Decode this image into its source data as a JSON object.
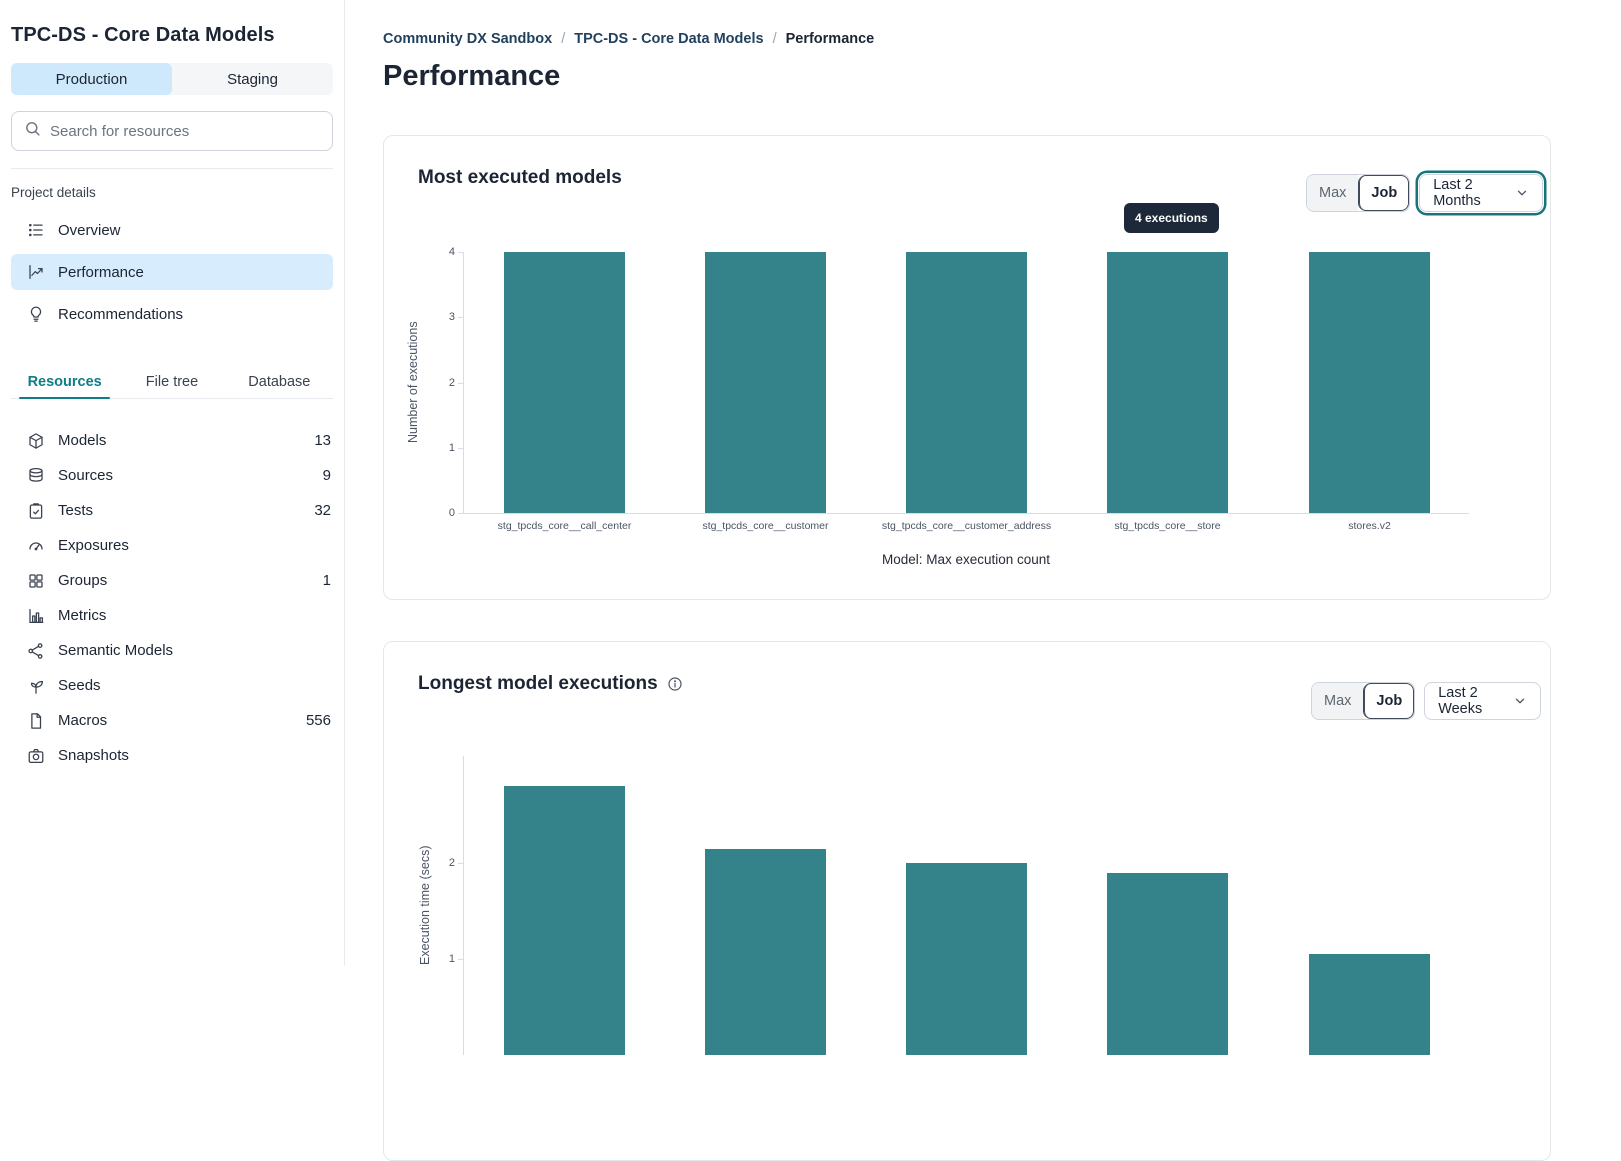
{
  "sidebar": {
    "title": "TPC-DS - Core Data Models",
    "env_tabs": [
      {
        "label": "Production",
        "active": true
      },
      {
        "label": "Staging",
        "active": false
      }
    ],
    "search_placeholder": "Search for resources",
    "section_label": "Project details",
    "nav_items": [
      {
        "label": "Overview",
        "icon": "overview-list-icon",
        "active": false
      },
      {
        "label": "Performance",
        "icon": "performance-chart-icon",
        "active": true
      },
      {
        "label": "Recommendations",
        "icon": "lightbulb-icon",
        "active": false
      }
    ],
    "tabs": [
      {
        "label": "Resources",
        "active": true
      },
      {
        "label": "File tree",
        "active": false
      },
      {
        "label": "Database",
        "active": false
      }
    ],
    "resources": [
      {
        "label": "Models",
        "count": "13",
        "icon": "cube-icon"
      },
      {
        "label": "Sources",
        "count": "9",
        "icon": "database-icon"
      },
      {
        "label": "Tests",
        "count": "32",
        "icon": "clipboard-check-icon"
      },
      {
        "label": "Exposures",
        "count": "",
        "icon": "gauge-icon"
      },
      {
        "label": "Groups",
        "count": "1",
        "icon": "grid-icon"
      },
      {
        "label": "Metrics",
        "count": "",
        "icon": "bar-chart-icon"
      },
      {
        "label": "Semantic Models",
        "count": "",
        "icon": "semantic-graph-icon"
      },
      {
        "label": "Seeds",
        "count": "",
        "icon": "seed-icon"
      },
      {
        "label": "Macros",
        "count": "556",
        "icon": "document-icon"
      },
      {
        "label": "Snapshots",
        "count": "",
        "icon": "camera-icon"
      }
    ]
  },
  "breadcrumb": {
    "items": [
      "Community DX Sandbox",
      "TPC-DS - Core Data Models",
      "Performance"
    ],
    "separator": "/"
  },
  "page_title": "Performance",
  "colors": {
    "bar_teal": "#35838A",
    "env_tab_active_blue": "#CDE9FB",
    "nav_active_blue": "#D7EDFD",
    "resources_tab_teal": "#0E7D86",
    "tooltip_bg": "#1D2939",
    "select_focus_teal": "#16747B"
  },
  "chart_data": [
    {
      "type": "bar",
      "title": "Most executed models",
      "categories": [
        "stg_tpcds_core__call_center",
        "stg_tpcds_core__customer",
        "stg_tpcds_core__customer_address",
        "stg_tpcds_core__store",
        "stores.v2"
      ],
      "values": [
        4,
        4,
        4,
        4,
        4
      ],
      "ylabel": "Number of executions",
      "xlabel": "Model: Max execution count",
      "yticks": [
        0,
        1,
        2,
        3,
        4
      ],
      "ylim": [
        0,
        4
      ],
      "grid": false,
      "legend": "none",
      "bar_color": "#35838A",
      "tooltip": {
        "label": "4 executions",
        "target_category": "stg_tpcds_core__store"
      },
      "controls": {
        "toggle": [
          "Max",
          "Job"
        ],
        "active_toggle": "Job",
        "range": "Last 2 Months",
        "range_focused": true
      }
    },
    {
      "type": "bar",
      "title": "Longest model executions",
      "has_info_icon": true,
      "values": [
        2.8,
        2.15,
        2.0,
        1.9,
        1.05
      ],
      "ylabel": "Execution time (secs)",
      "yticks": [
        1,
        2
      ],
      "grid": false,
      "legend": "none",
      "bar_color": "#35838A",
      "clipped_at_viewport_bottom": true,
      "controls": {
        "toggle": [
          "Max",
          "Job"
        ],
        "active_toggle": "Job",
        "range": "Last 2 Weeks",
        "range_focused": false
      }
    }
  ]
}
